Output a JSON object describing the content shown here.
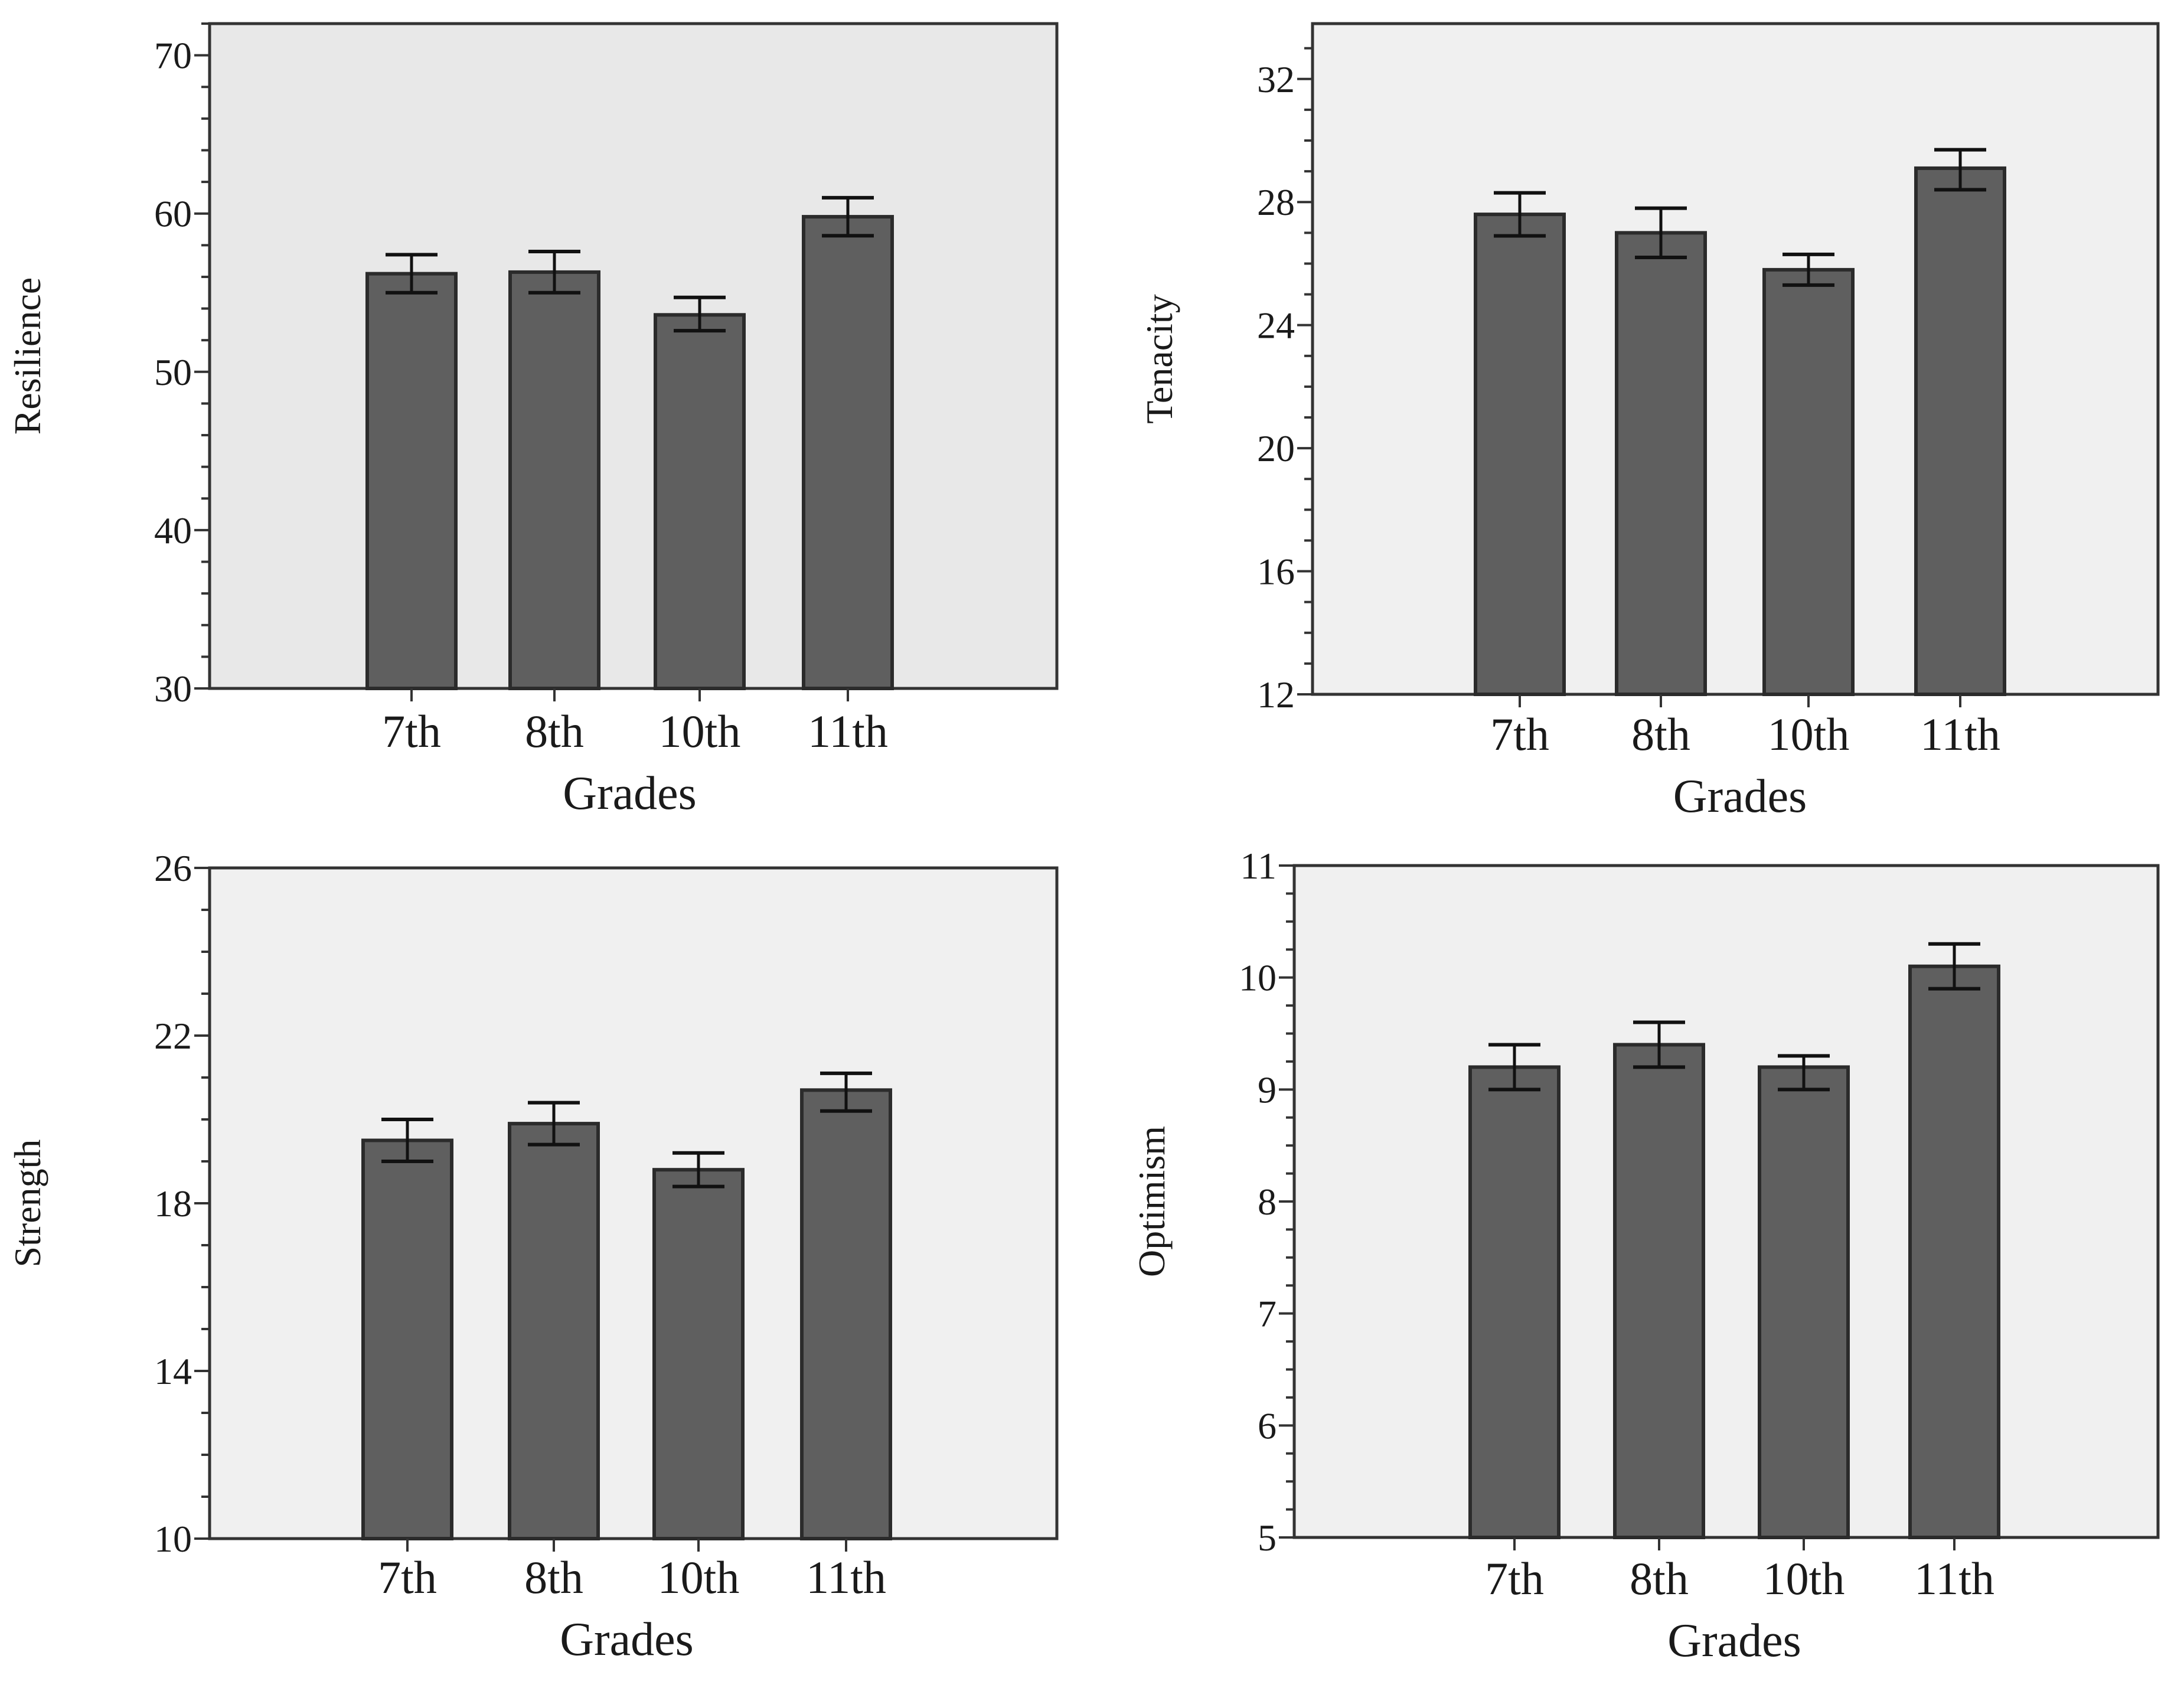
{
  "chart_data": [
    {
      "type": "bar",
      "panel": "top-left",
      "title": "",
      "xlabel": "Grades",
      "ylabel": "Resilience",
      "categories": [
        "7th",
        "8th",
        "10th",
        "11th"
      ],
      "values": [
        56.2,
        56.3,
        53.6,
        59.8
      ],
      "error_low": [
        55.0,
        55.0,
        52.6,
        58.6
      ],
      "error_high": [
        57.4,
        57.6,
        54.7,
        61.0
      ],
      "ylim": [
        30,
        72
      ],
      "yticks": [
        30,
        40,
        50,
        60,
        70
      ],
      "minor_step": 2,
      "plot_bg": "#e8e8e8"
    },
    {
      "type": "bar",
      "panel": "top-right",
      "title": "",
      "xlabel": "Grades",
      "ylabel": "Tenacity",
      "categories": [
        "7th",
        "8th",
        "10th",
        "11th"
      ],
      "values": [
        27.6,
        27.0,
        25.8,
        29.1
      ],
      "error_low": [
        26.9,
        26.2,
        25.3,
        28.4
      ],
      "error_high": [
        28.3,
        27.8,
        26.3,
        29.7
      ],
      "ylim": [
        12,
        33.8
      ],
      "yticks": [
        12,
        16,
        20,
        24,
        28,
        32
      ],
      "minor_step": 1,
      "plot_bg": "#f0f0f0"
    },
    {
      "type": "bar",
      "panel": "bottom-left",
      "title": "",
      "xlabel": "Grades",
      "ylabel": "Strength",
      "categories": [
        "7th",
        "8th",
        "10th",
        "11th"
      ],
      "values": [
        19.5,
        19.9,
        18.8,
        20.7
      ],
      "error_low": [
        19.0,
        19.4,
        18.4,
        20.2
      ],
      "error_high": [
        20.0,
        20.4,
        19.2,
        21.1
      ],
      "ylim": [
        10,
        26
      ],
      "yticks": [
        10,
        14,
        18,
        22,
        26
      ],
      "minor_step": 1,
      "plot_bg": "#f0f0f0"
    },
    {
      "type": "bar",
      "panel": "bottom-right",
      "title": "",
      "xlabel": "Grades",
      "ylabel": "Optimism",
      "categories": [
        "7th",
        "8th",
        "10th",
        "11th"
      ],
      "values": [
        9.2,
        9.4,
        9.2,
        10.1
      ],
      "error_low": [
        9.0,
        9.2,
        9.0,
        9.9
      ],
      "error_high": [
        9.4,
        9.6,
        9.3,
        10.3
      ],
      "ylim": [
        5,
        11
      ],
      "yticks": [
        5,
        6,
        7,
        8,
        9,
        10,
        11
      ],
      "minor_step": 0.25,
      "plot_bg": "#f0f0f0"
    }
  ],
  "colors": {
    "bar_fill": "#5f5f5f",
    "bar_stroke": "#2b2b2b",
    "frame": "#333333",
    "text": "#1a1a1a"
  }
}
